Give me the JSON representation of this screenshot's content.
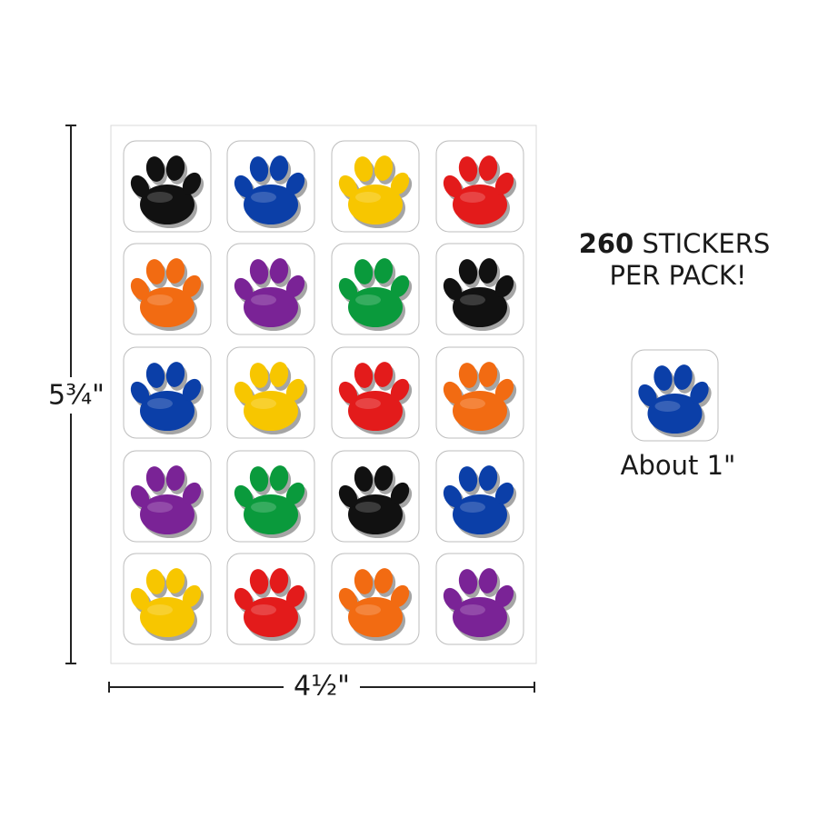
{
  "dimensions": {
    "height": "5¾\"",
    "width": "4½\""
  },
  "headline": {
    "count": "260",
    "line1": "STICKERS",
    "line2": "PER PACK!"
  },
  "sample": {
    "caption": "About 1\"",
    "color": "#0b3fa8"
  },
  "sheet": {
    "rows": [
      [
        "#111111",
        "#0b3fa8",
        "#f7c600",
        "#e31b1b"
      ],
      [
        "#f26b12",
        "#7a2396",
        "#0a9a3c",
        "#111111"
      ],
      [
        "#0b3fa8",
        "#f7c600",
        "#e31b1b",
        "#f26b12"
      ],
      [
        "#7a2396",
        "#0a9a3c",
        "#111111",
        "#0b3fa8"
      ],
      [
        "#f7c600",
        "#e31b1b",
        "#f26b12",
        "#7a2396"
      ]
    ]
  }
}
